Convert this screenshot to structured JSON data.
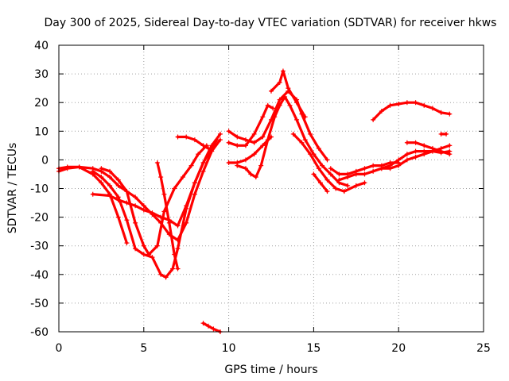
{
  "chart_data": {
    "type": "scatter",
    "title": "Day 300 of 2025, Sidereal Day-to-day VTEC variation (SDTVAR) for receiver hkws",
    "xlabel": "GPS time / hours",
    "ylabel": "SDTVAR / TECUs",
    "xlim": [
      0,
      25
    ],
    "ylim": [
      -60,
      40
    ],
    "xticks": [
      0,
      5,
      10,
      15,
      20,
      25
    ],
    "yticks": [
      -60,
      -50,
      -40,
      -30,
      -20,
      -10,
      0,
      10,
      20,
      30,
      40
    ],
    "grid": true,
    "legend": "none",
    "marker": "plus",
    "color": "#ff0000",
    "series": [
      {
        "values": [
          [
            0,
            -4
          ],
          [
            0.5,
            -3
          ],
          [
            1.2,
            -2.5
          ],
          [
            2,
            -3
          ],
          [
            2.5,
            -4
          ],
          [
            3,
            -6
          ],
          [
            3.5,
            -9
          ],
          [
            4,
            -11
          ],
          [
            4.5,
            -13
          ],
          [
            5,
            -16
          ],
          [
            5.5,
            -19
          ],
          [
            6,
            -22
          ],
          [
            6.5,
            -26
          ],
          [
            7,
            -28
          ],
          [
            7.5,
            -22
          ],
          [
            8,
            -12
          ],
          [
            8.5,
            -4
          ],
          [
            9,
            3
          ],
          [
            9.5,
            7
          ]
        ]
      },
      {
        "values": [
          [
            0,
            -3
          ],
          [
            0.5,
            -2.5
          ],
          [
            1.2,
            -2.5
          ],
          [
            2,
            -5
          ],
          [
            2.5,
            -8
          ],
          [
            3,
            -12
          ],
          [
            3.5,
            -20
          ],
          [
            4,
            -29
          ]
        ]
      },
      {
        "values": [
          [
            2,
            -4
          ],
          [
            2.5,
            -6
          ],
          [
            3,
            -9
          ],
          [
            3.5,
            -13
          ],
          [
            4,
            -21
          ],
          [
            4.5,
            -31
          ],
          [
            5,
            -33
          ],
          [
            5.5,
            -34
          ],
          [
            6,
            -40
          ],
          [
            6.3,
            -41
          ],
          [
            6.7,
            -38
          ],
          [
            7,
            -31
          ],
          [
            7.5,
            -17
          ],
          [
            8,
            -8
          ],
          [
            8.5,
            -1
          ],
          [
            9,
            4
          ],
          [
            9.3,
            7
          ]
        ]
      },
      {
        "values": [
          [
            2.5,
            -3
          ],
          [
            3,
            -4
          ],
          [
            3.5,
            -7
          ],
          [
            4,
            -11
          ],
          [
            4.5,
            -22
          ],
          [
            5,
            -30
          ],
          [
            5.3,
            -33
          ],
          [
            5.8,
            -30
          ],
          [
            6.2,
            -18
          ],
          [
            6.8,
            -10
          ],
          [
            7.3,
            -6
          ],
          [
            7.8,
            -2
          ],
          [
            8.2,
            2
          ],
          [
            8.7,
            5
          ]
        ]
      },
      {
        "values": [
          [
            2,
            -12
          ],
          [
            3,
            -12.5
          ],
          [
            3.5,
            -14
          ],
          [
            4,
            -15
          ],
          [
            4.5,
            -16
          ],
          [
            5,
            -17.5
          ],
          [
            5.5,
            -18.5
          ],
          [
            6,
            -20
          ],
          [
            6.5,
            -21
          ],
          [
            7,
            -23
          ],
          [
            7.5,
            -16
          ],
          [
            8,
            -8
          ],
          [
            8.5,
            -1
          ],
          [
            9,
            5
          ],
          [
            9.5,
            9
          ]
        ]
      },
      {
        "values": [
          [
            5.8,
            -1
          ],
          [
            6,
            -6
          ],
          [
            6.2,
            -12
          ],
          [
            6.5,
            -22
          ],
          [
            6.8,
            -33
          ],
          [
            7,
            -38
          ]
        ]
      },
      {
        "values": [
          [
            7,
            8
          ],
          [
            7.5,
            8
          ],
          [
            8,
            7
          ],
          [
            8.5,
            5
          ],
          [
            8.8,
            4
          ]
        ]
      },
      {
        "values": [
          [
            8.5,
            -57
          ],
          [
            8.8,
            -58
          ],
          [
            9.1,
            -59
          ],
          [
            9.5,
            -60
          ]
        ]
      },
      {
        "values": [
          [
            10,
            10
          ],
          [
            10.5,
            8
          ],
          [
            11,
            7
          ],
          [
            11.5,
            6
          ],
          [
            12,
            8
          ],
          [
            12.5,
            14
          ],
          [
            13,
            21
          ],
          [
            13.5,
            24
          ],
          [
            14,
            21
          ],
          [
            14.3,
            16
          ],
          [
            14.8,
            9
          ],
          [
            15.3,
            4
          ],
          [
            15.8,
            0
          ]
        ]
      },
      {
        "values": [
          [
            10,
            6
          ],
          [
            10.5,
            5
          ],
          [
            11,
            5
          ],
          [
            11.5,
            9
          ],
          [
            12,
            15
          ],
          [
            12.3,
            19
          ],
          [
            12.6,
            18
          ]
        ]
      },
      {
        "values": [
          [
            10,
            -1
          ],
          [
            10.5,
            -1
          ],
          [
            11,
            0
          ],
          [
            11.5,
            2
          ],
          [
            12,
            5
          ],
          [
            12.5,
            8
          ]
        ]
      },
      {
        "values": [
          [
            10.5,
            -2
          ],
          [
            11,
            -3
          ],
          [
            11.3,
            -5
          ],
          [
            11.6,
            -6
          ],
          [
            11.9,
            -2
          ],
          [
            12.3,
            7
          ],
          [
            12.7,
            15
          ],
          [
            13,
            19
          ],
          [
            13.3,
            22
          ],
          [
            13.6,
            19
          ],
          [
            14,
            14
          ],
          [
            14.5,
            7
          ],
          [
            15,
            2
          ],
          [
            15.5,
            -2
          ],
          [
            16,
            -5
          ],
          [
            16.5,
            -8
          ],
          [
            17,
            -9
          ]
        ]
      },
      {
        "values": [
          [
            12.5,
            24
          ],
          [
            13,
            27
          ],
          [
            13.2,
            31
          ],
          [
            13.5,
            25
          ],
          [
            14,
            20
          ],
          [
            14.5,
            15
          ]
        ]
      },
      {
        "values": [
          [
            13.8,
            9
          ],
          [
            14.3,
            6
          ],
          [
            14.8,
            2
          ],
          [
            15.3,
            -3
          ],
          [
            15.8,
            -7
          ],
          [
            16.3,
            -10
          ],
          [
            16.8,
            -11
          ],
          [
            17.5,
            -9
          ],
          [
            18,
            -8
          ]
        ]
      },
      {
        "values": [
          [
            15,
            -5
          ],
          [
            15.4,
            -8
          ],
          [
            15.8,
            -11
          ]
        ]
      },
      {
        "values": [
          [
            16,
            -3
          ],
          [
            16.5,
            -5
          ],
          [
            17,
            -5
          ],
          [
            17.5,
            -4
          ],
          [
            18,
            -3
          ],
          [
            18.5,
            -2
          ],
          [
            19,
            -2
          ],
          [
            19.5,
            -1
          ],
          [
            20,
            -1
          ]
        ]
      },
      {
        "values": [
          [
            16.5,
            -7
          ],
          [
            17,
            -6
          ],
          [
            17.5,
            -5
          ],
          [
            18,
            -5
          ],
          [
            18.5,
            -4
          ],
          [
            19,
            -3
          ],
          [
            19.5,
            -3
          ],
          [
            20,
            -2
          ],
          [
            20.5,
            0
          ],
          [
            21,
            1
          ],
          [
            21.5,
            2
          ],
          [
            22,
            3
          ],
          [
            22.5,
            4
          ],
          [
            23,
            5
          ]
        ]
      },
      {
        "values": [
          [
            18.5,
            14
          ],
          [
            19,
            17
          ],
          [
            19.5,
            19
          ],
          [
            20,
            19.5
          ],
          [
            20.5,
            20
          ],
          [
            21,
            20
          ],
          [
            21.5,
            19
          ],
          [
            22,
            18
          ],
          [
            22.5,
            16.5
          ],
          [
            23,
            16
          ]
        ]
      },
      {
        "values": [
          [
            19,
            -3
          ],
          [
            19.5,
            -2
          ],
          [
            20,
            0
          ],
          [
            20.5,
            2
          ],
          [
            21,
            3
          ],
          [
            21.5,
            3
          ],
          [
            22,
            3
          ],
          [
            22.5,
            2.5
          ],
          [
            23,
            3
          ]
        ]
      },
      {
        "values": [
          [
            20.5,
            6
          ],
          [
            21,
            6
          ],
          [
            21.5,
            5
          ],
          [
            22,
            4
          ],
          [
            22.5,
            3
          ],
          [
            23,
            2
          ]
        ]
      },
      {
        "values": [
          [
            22.5,
            9
          ],
          [
            22.8,
            9
          ]
        ]
      }
    ]
  }
}
